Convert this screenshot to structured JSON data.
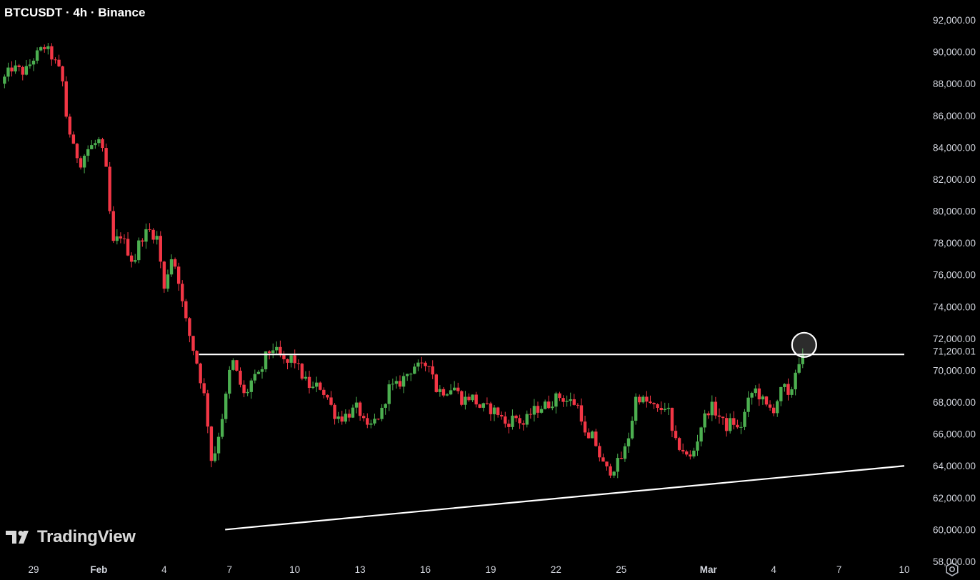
{
  "header": {
    "symbol_line": "BTCUSDT · 4h · Binance"
  },
  "brand": {
    "logo_text": "TradingView",
    "logo_icon": "tradingview-logo-icon"
  },
  "settings": {
    "icon": "gear-icon"
  },
  "colors": {
    "background": "#000000",
    "bull": "#4caf50",
    "bear": "#f23645",
    "line": "#ffffff",
    "axis_text": "#d1d4dc"
  },
  "chart_data": {
    "type": "candlestick",
    "title": "BTCUSDT · 4h · Binance",
    "timeframe": "4h",
    "ylim": [
      57000,
      93000
    ],
    "y_ticks": [
      "92,000.00",
      "90,000.00",
      "88,000.00",
      "86,000.00",
      "84,000.00",
      "82,000.00",
      "80,000.00",
      "78,000.00",
      "76,000.00",
      "74,000.00",
      "72,000.00",
      "70,000.00",
      "68,000.00",
      "66,000.00",
      "64,000.00",
      "62,000.00",
      "60,000.00",
      "58,000.00"
    ],
    "y_tick_values": [
      92000,
      90000,
      88000,
      86000,
      84000,
      82000,
      80000,
      78000,
      76000,
      74000,
      72000,
      70000,
      68000,
      66000,
      64000,
      62000,
      60000,
      58000
    ],
    "price_marker": {
      "label": "71,200.01",
      "value": 71200
    },
    "x_ticks": [
      {
        "label": "29",
        "day": 29
      },
      {
        "label": "Feb",
        "day": 32
      },
      {
        "label": "4",
        "day": 35
      },
      {
        "label": "7",
        "day": 38
      },
      {
        "label": "10",
        "day": 41
      },
      {
        "label": "13",
        "day": 44
      },
      {
        "label": "16",
        "day": 47
      },
      {
        "label": "19",
        "day": 50
      },
      {
        "label": "22",
        "day": 53
      },
      {
        "label": "25",
        "day": 56
      },
      {
        "label": "Mar",
        "day": 60
      },
      {
        "label": "4",
        "day": 63
      },
      {
        "label": "7",
        "day": 66
      },
      {
        "label": "10",
        "day": 69
      }
    ],
    "xlim_days": [
      27.5,
      71.3
    ],
    "path": [
      [
        27.5,
        88000
      ],
      [
        28.0,
        89000
      ],
      [
        28.6,
        88700
      ],
      [
        29.0,
        89600
      ],
      [
        29.5,
        90300
      ],
      [
        29.8,
        89800
      ],
      [
        30.3,
        88500
      ],
      [
        30.5,
        86000
      ],
      [
        30.8,
        84000
      ],
      [
        31.2,
        83000
      ],
      [
        31.4,
        83800
      ],
      [
        32.0,
        84400
      ],
      [
        32.2,
        83500
      ],
      [
        32.4,
        82000
      ],
      [
        32.6,
        77800
      ],
      [
        33.0,
        78500
      ],
      [
        33.3,
        77600
      ],
      [
        33.6,
        76700
      ],
      [
        33.9,
        78300
      ],
      [
        34.3,
        78800
      ],
      [
        34.7,
        78300
      ],
      [
        35.0,
        75000
      ],
      [
        35.3,
        77200
      ],
      [
        35.6,
        76300
      ],
      [
        35.9,
        73600
      ],
      [
        36.2,
        72000
      ],
      [
        36.5,
        70500
      ],
      [
        36.9,
        68000
      ],
      [
        37.2,
        64000
      ],
      [
        37.5,
        66000
      ],
      [
        37.8,
        68000
      ],
      [
        38.1,
        70800
      ],
      [
        38.4,
        69500
      ],
      [
        38.7,
        68300
      ],
      [
        39.0,
        69300
      ],
      [
        39.4,
        69700
      ],
      [
        39.7,
        71000
      ],
      [
        40.0,
        71400
      ],
      [
        40.3,
        70900
      ],
      [
        40.6,
        70300
      ],
      [
        40.9,
        70900
      ],
      [
        41.2,
        70000
      ],
      [
        41.5,
        69300
      ],
      [
        41.8,
        68800
      ],
      [
        42.1,
        69100
      ],
      [
        42.5,
        68300
      ],
      [
        42.8,
        67300
      ],
      [
        43.1,
        67000
      ],
      [
        43.5,
        67300
      ],
      [
        43.9,
        67700
      ],
      [
        44.3,
        66200
      ],
      [
        44.6,
        66700
      ],
      [
        45.0,
        67400
      ],
      [
        45.3,
        68900
      ],
      [
        45.7,
        69000
      ],
      [
        46.1,
        69700
      ],
      [
        46.5,
        70300
      ],
      [
        46.8,
        70100
      ],
      [
        47.2,
        70600
      ],
      [
        47.5,
        68800
      ],
      [
        47.9,
        68700
      ],
      [
        48.3,
        69000
      ],
      [
        48.7,
        68100
      ],
      [
        49.1,
        68400
      ],
      [
        49.5,
        67700
      ],
      [
        49.9,
        67600
      ],
      [
        50.3,
        67400
      ],
      [
        50.7,
        66600
      ],
      [
        51.1,
        67100
      ],
      [
        51.5,
        66600
      ],
      [
        51.9,
        67400
      ],
      [
        52.3,
        67700
      ],
      [
        52.7,
        67900
      ],
      [
        53.1,
        68400
      ],
      [
        53.5,
        68100
      ],
      [
        53.8,
        68000
      ],
      [
        54.1,
        67600
      ],
      [
        54.4,
        65400
      ],
      [
        54.7,
        65900
      ],
      [
        55.1,
        64200
      ],
      [
        55.4,
        63600
      ],
      [
        55.8,
        64100
      ],
      [
        56.1,
        64700
      ],
      [
        56.4,
        66200
      ],
      [
        56.7,
        68500
      ],
      [
        57.0,
        68100
      ],
      [
        57.3,
        67900
      ],
      [
        57.7,
        67400
      ],
      [
        58.1,
        67900
      ],
      [
        58.4,
        65500
      ],
      [
        58.8,
        65100
      ],
      [
        59.1,
        64300
      ],
      [
        59.4,
        65200
      ],
      [
        59.7,
        66700
      ],
      [
        60.1,
        67800
      ],
      [
        60.5,
        67100
      ],
      [
        60.8,
        66400
      ],
      [
        61.1,
        66900
      ],
      [
        61.4,
        66100
      ],
      [
        61.8,
        67900
      ],
      [
        62.1,
        68900
      ],
      [
        62.4,
        68300
      ],
      [
        62.7,
        67600
      ],
      [
        63.0,
        67600
      ],
      [
        63.3,
        68600
      ],
      [
        63.5,
        68900
      ],
      [
        63.7,
        68000
      ],
      [
        63.9,
        69400
      ],
      [
        64.1,
        70500
      ],
      [
        64.4,
        71200
      ]
    ],
    "trendlines": [
      {
        "name": "resistance",
        "points": [
          [
            36.6,
            71000
          ],
          [
            69.0,
            71000
          ]
        ]
      },
      {
        "name": "ascending-support",
        "points": [
          [
            37.8,
            60000
          ],
          [
            69.0,
            64000
          ]
        ]
      }
    ],
    "annotation": {
      "type": "circle",
      "day": 64.4,
      "value": 71600
    }
  }
}
